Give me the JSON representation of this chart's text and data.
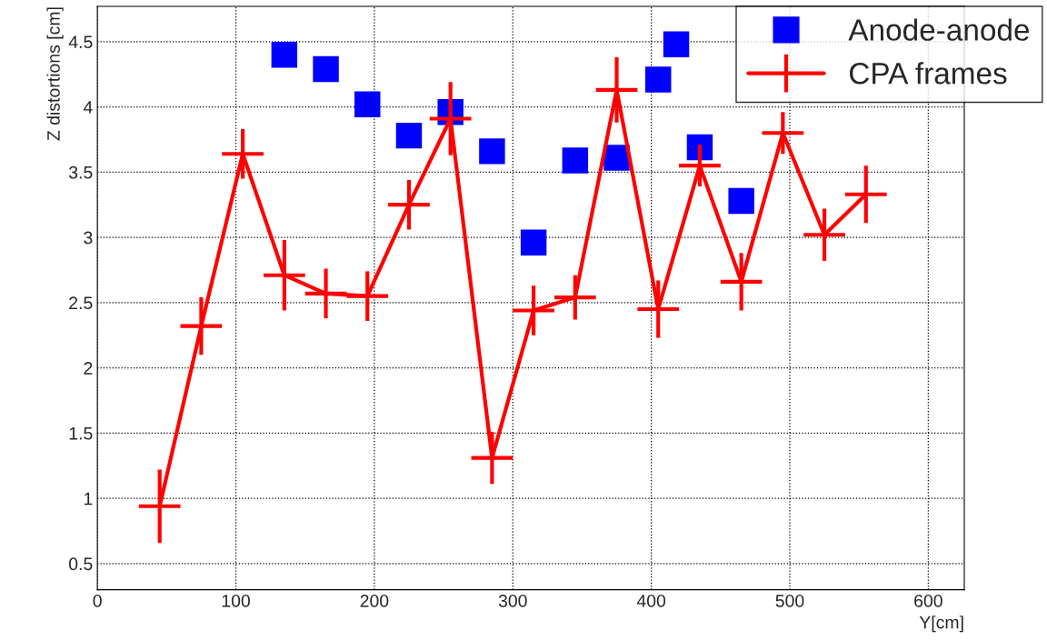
{
  "chart_data": {
    "type": "line",
    "xlabel": "Y[cm]",
    "ylabel": "Z distortions [cm]",
    "xlim": [
      0,
      626
    ],
    "ylim": [
      0.3,
      4.77
    ],
    "xticks": [
      0,
      100,
      200,
      300,
      400,
      500,
      600
    ],
    "yticks": [
      0.5,
      1,
      1.5,
      2,
      2.5,
      3,
      3.5,
      4,
      4.5
    ],
    "grid": true,
    "legend": "top right",
    "series": [
      {
        "name": "Anode-anode",
        "type": "scatter",
        "marker": "square",
        "color": "#0000ff",
        "x": [
          135,
          165,
          195,
          225,
          255,
          285,
          315,
          345,
          375,
          405,
          418,
          435,
          465
        ],
        "values": [
          4.4,
          4.29,
          4.02,
          3.78,
          3.96,
          3.66,
          2.96,
          3.59,
          3.61,
          4.21,
          4.48,
          3.69,
          3.28
        ]
      },
      {
        "name": "CPA frames",
        "marker": "none",
        "line_style": "solid",
        "color": "#ff0000",
        "x": [
          45,
          75,
          105,
          135,
          165,
          195,
          225,
          255,
          285,
          315,
          345,
          375,
          405,
          435,
          465,
          495,
          525,
          555
        ],
        "values": [
          0.94,
          2.32,
          3.64,
          2.71,
          2.57,
          2.55,
          3.25,
          3.91,
          1.31,
          2.44,
          2.54,
          4.13,
          2.45,
          3.55,
          2.66,
          3.8,
          3.02,
          3.33
        ],
        "errors": [
          0.28,
          0.22,
          0.19,
          0.27,
          0.19,
          0.19,
          0.19,
          0.28,
          0.2,
          0.19,
          0.17,
          0.25,
          0.22,
          0.16,
          0.22,
          0.16,
          0.2,
          0.22
        ],
        "xerrors": [
          15,
          15,
          15,
          15,
          15,
          15,
          15,
          15,
          15,
          15,
          15,
          15,
          15,
          15,
          15,
          15,
          15,
          15
        ]
      }
    ]
  }
}
